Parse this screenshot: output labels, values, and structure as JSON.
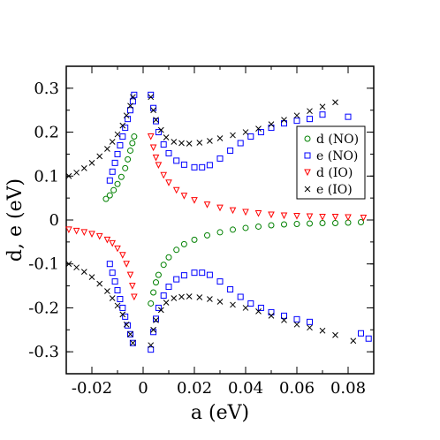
{
  "chart_data": {
    "type": "scatter",
    "xlabel": "a (eV)",
    "ylabel": "d, e (eV)",
    "xlim": [
      -0.03,
      0.09
    ],
    "ylim": [
      -0.35,
      0.35
    ],
    "xticks": [
      -0.02,
      0,
      0.02,
      0.04,
      0.06,
      0.08
    ],
    "xtick_labels": [
      "-0.02",
      "0",
      "0.02",
      "0.04",
      "0.06",
      "0.08"
    ],
    "yticks": [
      -0.3,
      -0.2,
      -0.1,
      0,
      0.1,
      0.2,
      0.3
    ],
    "ytick_labels": [
      "-0.3",
      "-0.2",
      "-0.1",
      "0",
      "0.1",
      "0.2",
      "0.3"
    ],
    "legend_position": "right",
    "grid": false,
    "series": [
      {
        "name": "d (NO)",
        "marker": "circle",
        "color": "#008000",
        "points": [
          [
            -0.0145,
            0.048
          ],
          [
            -0.013,
            0.056
          ],
          [
            -0.0115,
            0.068
          ],
          [
            -0.01,
            0.082
          ],
          [
            -0.0085,
            0.098
          ],
          [
            -0.007,
            0.118
          ],
          [
            -0.006,
            0.138
          ],
          [
            -0.005,
            0.158
          ],
          [
            -0.0042,
            0.175
          ],
          [
            -0.0035,
            0.19
          ],
          [
            0.003,
            -0.19
          ],
          [
            0.004,
            -0.165
          ],
          [
            0.005,
            -0.142
          ],
          [
            0.006,
            -0.125
          ],
          [
            0.008,
            -0.102
          ],
          [
            0.01,
            -0.085
          ],
          [
            0.013,
            -0.068
          ],
          [
            0.016,
            -0.055
          ],
          [
            0.02,
            -0.045
          ],
          [
            0.025,
            -0.035
          ],
          [
            0.03,
            -0.028
          ],
          [
            0.035,
            -0.022
          ],
          [
            0.04,
            -0.018
          ],
          [
            0.045,
            -0.015
          ],
          [
            0.05,
            -0.012
          ],
          [
            0.055,
            -0.01
          ],
          [
            0.06,
            -0.009
          ],
          [
            0.065,
            -0.008
          ],
          [
            0.07,
            -0.007
          ],
          [
            0.075,
            -0.007
          ],
          [
            0.08,
            -0.006
          ],
          [
            0.085,
            -0.005
          ]
        ]
      },
      {
        "name": "e (NO)",
        "marker": "square",
        "color": "#0000ff",
        "points": [
          [
            -0.013,
            0.09
          ],
          [
            -0.012,
            0.11
          ],
          [
            -0.011,
            0.13
          ],
          [
            -0.01,
            0.15
          ],
          [
            -0.009,
            0.17
          ],
          [
            -0.008,
            0.19
          ],
          [
            -0.007,
            0.21
          ],
          [
            -0.006,
            0.23
          ],
          [
            -0.005,
            0.25
          ],
          [
            -0.004,
            0.27
          ],
          [
            -0.0035,
            0.285
          ],
          [
            0.003,
            0.285
          ],
          [
            0.004,
            0.255
          ],
          [
            0.005,
            0.225
          ],
          [
            0.006,
            0.2
          ],
          [
            0.008,
            0.172
          ],
          [
            0.01,
            0.152
          ],
          [
            0.013,
            0.135
          ],
          [
            0.016,
            0.126
          ],
          [
            0.02,
            0.12
          ],
          [
            0.023,
            0.12
          ],
          [
            0.026,
            0.125
          ],
          [
            0.03,
            0.14
          ],
          [
            0.034,
            0.158
          ],
          [
            0.038,
            0.175
          ],
          [
            0.042,
            0.19
          ],
          [
            0.046,
            0.2
          ],
          [
            0.05,
            0.21
          ],
          [
            0.055,
            0.22
          ],
          [
            0.06,
            0.226
          ],
          [
            0.065,
            0.23
          ],
          [
            0.07,
            0.24
          ],
          [
            0.08,
            0.235
          ],
          [
            -0.013,
            -0.1
          ],
          [
            -0.012,
            -0.12
          ],
          [
            -0.011,
            -0.14
          ],
          [
            -0.01,
            -0.16
          ],
          [
            -0.009,
            -0.18
          ],
          [
            -0.008,
            -0.2
          ],
          [
            -0.007,
            -0.22
          ],
          [
            -0.006,
            -0.24
          ],
          [
            -0.005,
            -0.26
          ],
          [
            -0.004,
            -0.28
          ],
          [
            0.003,
            -0.295
          ],
          [
            0.004,
            -0.255
          ],
          [
            0.005,
            -0.225
          ],
          [
            0.006,
            -0.2
          ],
          [
            0.008,
            -0.172
          ],
          [
            0.01,
            -0.152
          ],
          [
            0.013,
            -0.135
          ],
          [
            0.016,
            -0.126
          ],
          [
            0.02,
            -0.12
          ],
          [
            0.023,
            -0.12
          ],
          [
            0.026,
            -0.125
          ],
          [
            0.03,
            -0.14
          ],
          [
            0.034,
            -0.158
          ],
          [
            0.038,
            -0.175
          ],
          [
            0.042,
            -0.19
          ],
          [
            0.046,
            -0.2
          ],
          [
            0.05,
            -0.21
          ],
          [
            0.055,
            -0.218
          ],
          [
            0.06,
            -0.226
          ],
          [
            0.065,
            -0.232
          ],
          [
            0.085,
            -0.258
          ],
          [
            0.088,
            -0.27
          ]
        ]
      },
      {
        "name": "d (IO)",
        "marker": "triangle-down",
        "color": "#ff0000",
        "points": [
          [
            0.003,
            0.19
          ],
          [
            0.004,
            0.165
          ],
          [
            0.005,
            0.142
          ],
          [
            0.006,
            0.125
          ],
          [
            0.008,
            0.102
          ],
          [
            0.01,
            0.085
          ],
          [
            0.013,
            0.068
          ],
          [
            0.016,
            0.055
          ],
          [
            0.02,
            0.045
          ],
          [
            0.025,
            0.035
          ],
          [
            0.03,
            0.028
          ],
          [
            0.035,
            0.022
          ],
          [
            0.04,
            0.018
          ],
          [
            0.045,
            0.015
          ],
          [
            0.05,
            0.012
          ],
          [
            0.055,
            0.01
          ],
          [
            0.06,
            0.009
          ],
          [
            0.065,
            0.008
          ],
          [
            0.07,
            0.007
          ],
          [
            0.075,
            0.007
          ],
          [
            0.08,
            0.006
          ],
          [
            0.086,
            0.005
          ],
          [
            -0.029,
            -0.022
          ],
          [
            -0.026,
            -0.025
          ],
          [
            -0.023,
            -0.028
          ],
          [
            -0.02,
            -0.032
          ],
          [
            -0.017,
            -0.037
          ],
          [
            -0.014,
            -0.045
          ],
          [
            -0.012,
            -0.053
          ],
          [
            -0.01,
            -0.065
          ],
          [
            -0.008,
            -0.08
          ],
          [
            -0.0065,
            -0.1
          ],
          [
            -0.005,
            -0.125
          ],
          [
            -0.0042,
            -0.15
          ],
          [
            -0.0035,
            -0.175
          ]
        ]
      },
      {
        "name": "e (IO)",
        "marker": "x",
        "color": "#000000",
        "points": [
          [
            -0.029,
            0.1
          ],
          [
            -0.026,
            0.108
          ],
          [
            -0.023,
            0.118
          ],
          [
            -0.02,
            0.13
          ],
          [
            -0.017,
            0.145
          ],
          [
            -0.014,
            0.162
          ],
          [
            -0.012,
            0.178
          ],
          [
            -0.01,
            0.195
          ],
          [
            -0.008,
            0.215
          ],
          [
            -0.0065,
            0.238
          ],
          [
            -0.005,
            0.26
          ],
          [
            -0.004,
            0.28
          ],
          [
            0.003,
            0.28
          ],
          [
            0.004,
            0.25
          ],
          [
            0.005,
            0.228
          ],
          [
            0.007,
            0.205
          ],
          [
            0.009,
            0.188
          ],
          [
            0.012,
            0.178
          ],
          [
            0.015,
            0.175
          ],
          [
            0.018,
            0.174
          ],
          [
            0.022,
            0.176
          ],
          [
            0.026,
            0.18
          ],
          [
            0.03,
            0.186
          ],
          [
            0.035,
            0.193
          ],
          [
            0.04,
            0.2
          ],
          [
            0.045,
            0.208
          ],
          [
            0.05,
            0.218
          ],
          [
            0.055,
            0.228
          ],
          [
            0.06,
            0.238
          ],
          [
            0.065,
            0.248
          ],
          [
            0.07,
            0.258
          ],
          [
            0.075,
            0.268
          ],
          [
            -0.029,
            -0.1
          ],
          [
            -0.026,
            -0.108
          ],
          [
            -0.023,
            -0.118
          ],
          [
            -0.02,
            -0.13
          ],
          [
            -0.017,
            -0.145
          ],
          [
            -0.014,
            -0.162
          ],
          [
            -0.012,
            -0.178
          ],
          [
            -0.01,
            -0.195
          ],
          [
            -0.008,
            -0.215
          ],
          [
            -0.0065,
            -0.238
          ],
          [
            -0.005,
            -0.26
          ],
          [
            -0.004,
            -0.28
          ],
          [
            0.003,
            -0.285
          ],
          [
            0.004,
            -0.25
          ],
          [
            0.005,
            -0.228
          ],
          [
            0.007,
            -0.205
          ],
          [
            0.009,
            -0.188
          ],
          [
            0.012,
            -0.178
          ],
          [
            0.015,
            -0.175
          ],
          [
            0.018,
            -0.174
          ],
          [
            0.022,
            -0.176
          ],
          [
            0.026,
            -0.18
          ],
          [
            0.03,
            -0.186
          ],
          [
            0.035,
            -0.193
          ],
          [
            0.04,
            -0.2
          ],
          [
            0.045,
            -0.208
          ],
          [
            0.05,
            -0.218
          ],
          [
            0.055,
            -0.228
          ],
          [
            0.06,
            -0.238
          ],
          [
            0.065,
            -0.245
          ],
          [
            0.07,
            -0.252
          ],
          [
            0.075,
            -0.262
          ],
          [
            0.082,
            -0.275
          ]
        ]
      }
    ]
  }
}
